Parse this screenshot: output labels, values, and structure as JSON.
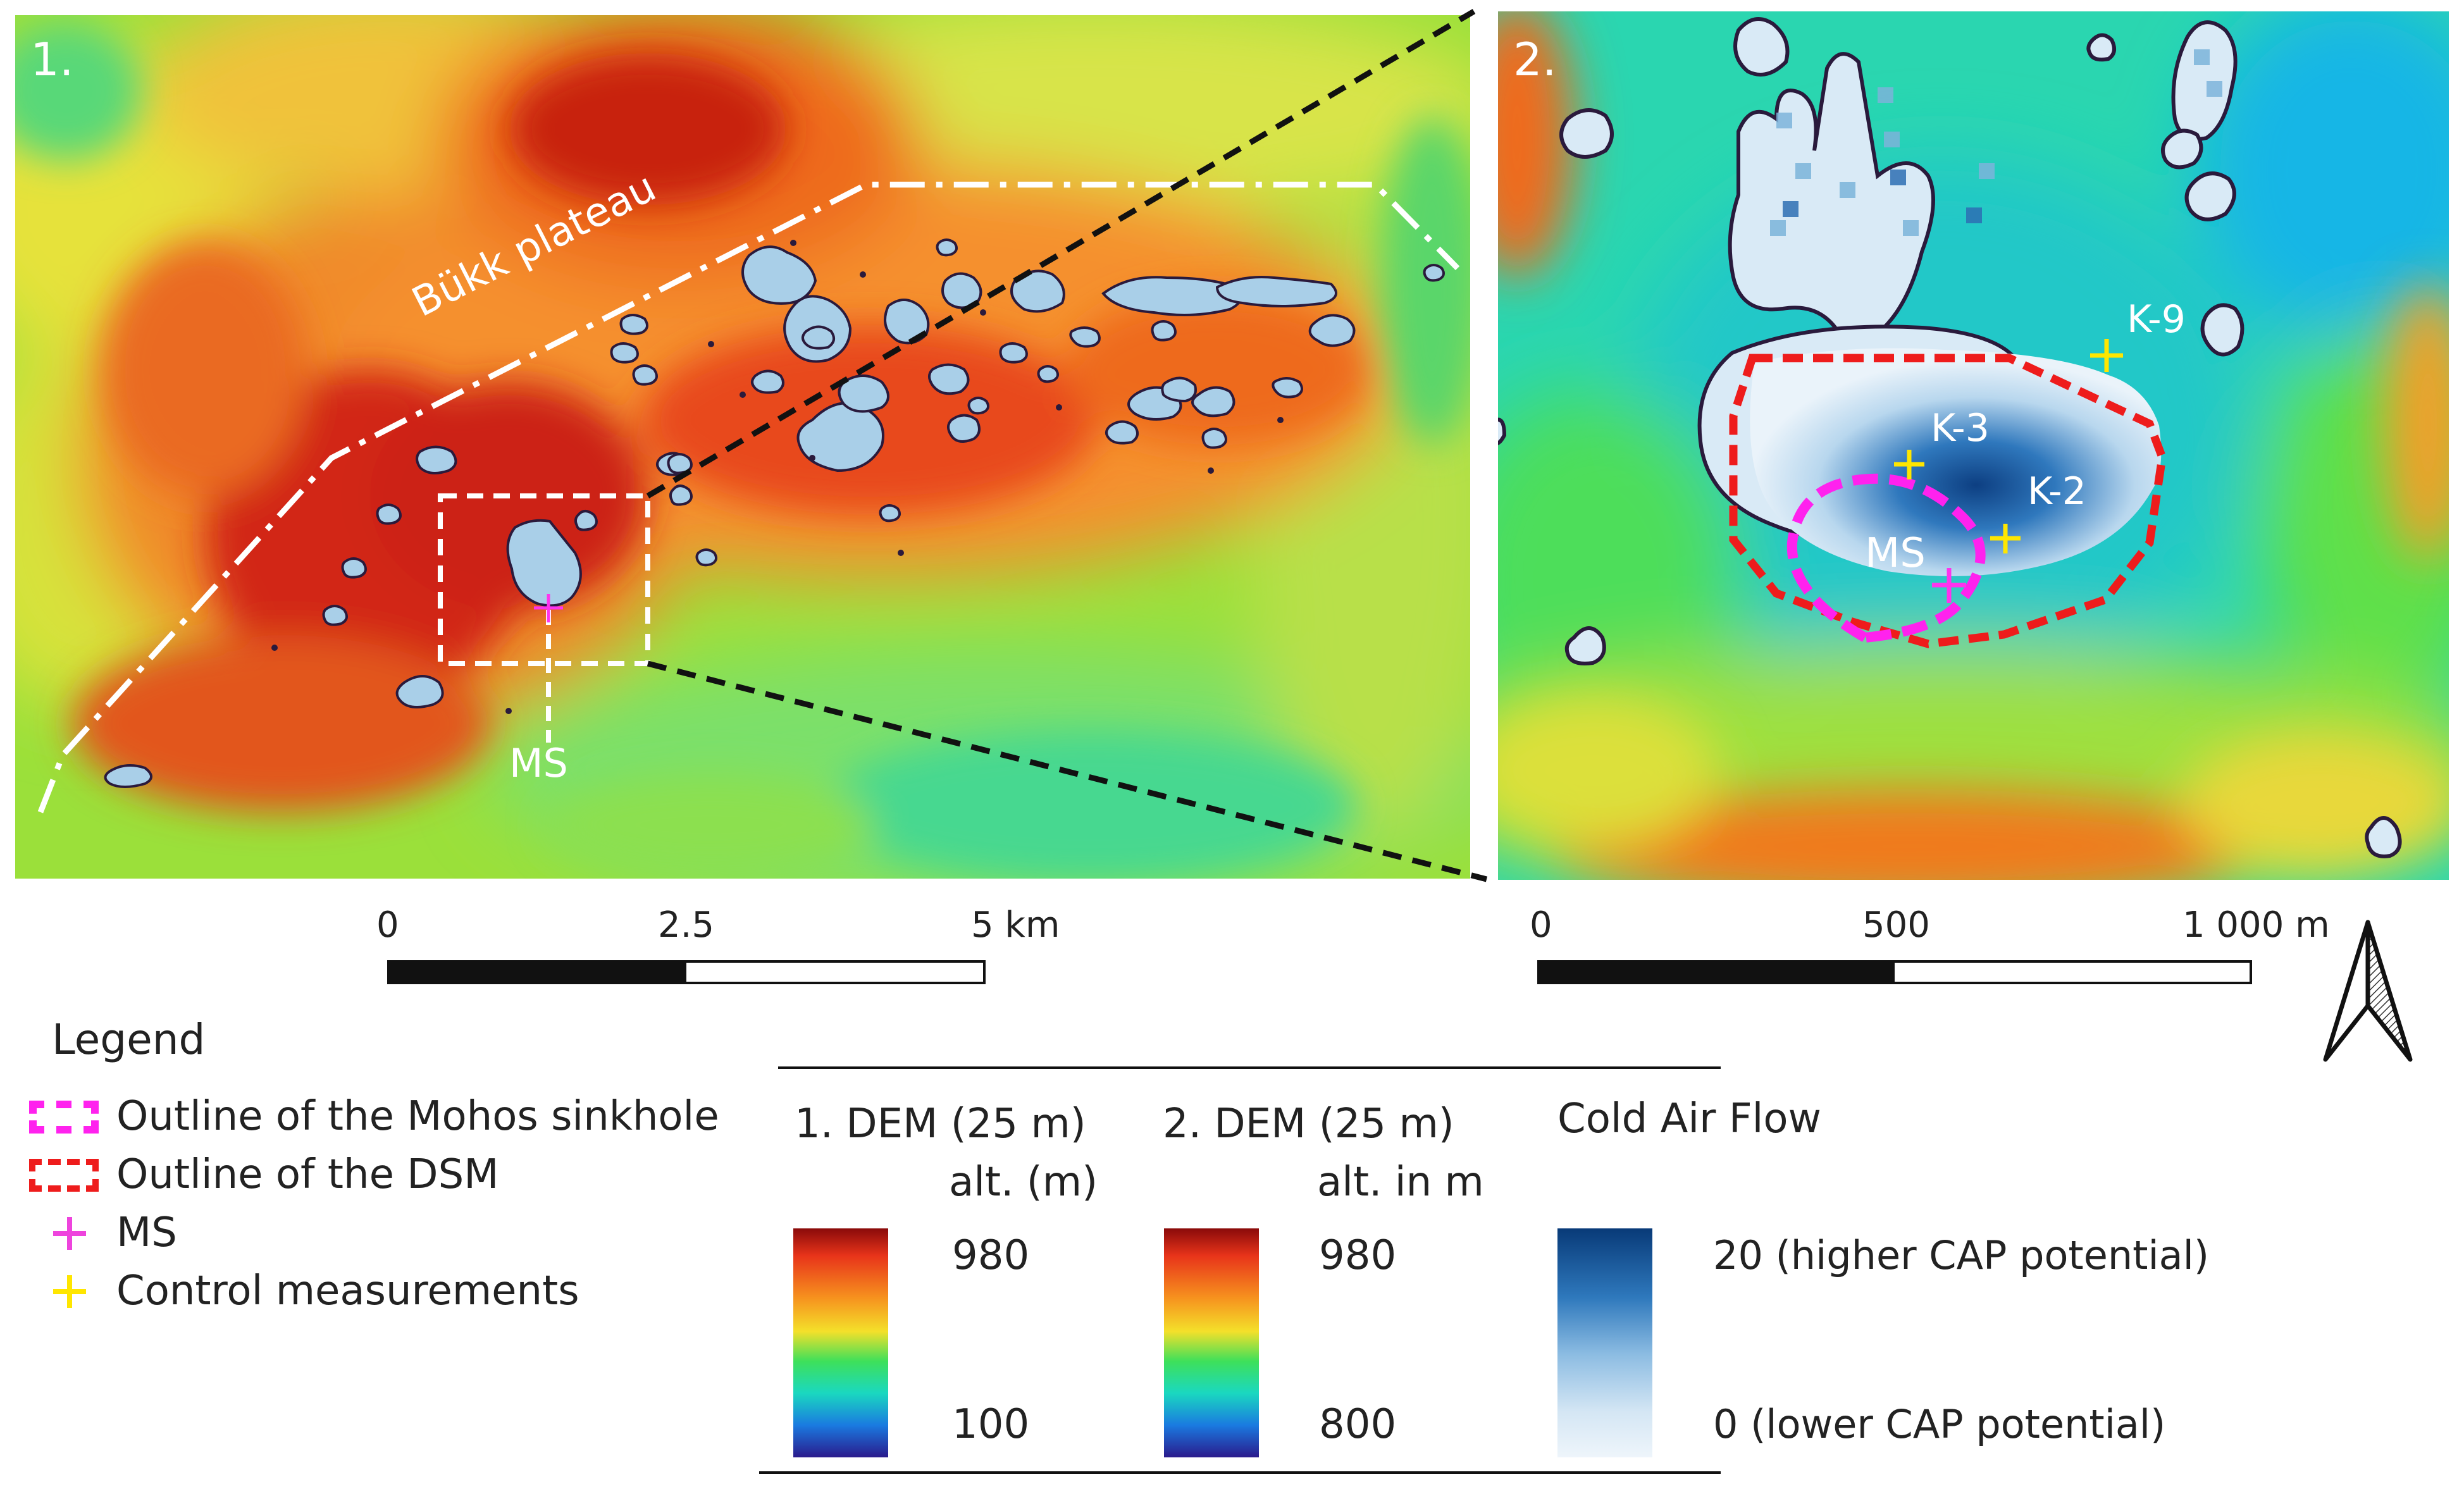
{
  "map1": {
    "panel_label": "1.",
    "plateau_label": "Bükk plateau",
    "ms_label": "MS",
    "scale": {
      "ticks": [
        "0",
        "2.5",
        "5 km"
      ]
    }
  },
  "map2": {
    "panel_label": "2.",
    "points": [
      {
        "label": "K-9",
        "type": "control"
      },
      {
        "label": "K-3",
        "type": "control"
      },
      {
        "label": "K-2",
        "type": "control"
      },
      {
        "label": "MS",
        "type": "ms"
      }
    ],
    "scale": {
      "ticks": [
        "0",
        "500",
        "1 000 m"
      ]
    }
  },
  "legend": {
    "title": "Legend",
    "items": [
      {
        "label": "Outline of the Mohos sinkhole",
        "symbol": "magenta-dashed-box",
        "color": "#ff22ee"
      },
      {
        "label": "Outline of the DSM",
        "symbol": "red-dashed-box",
        "color": "#ee1c1c"
      },
      {
        "label": "MS",
        "symbol": "magenta-cross",
        "color": "#ee44dd"
      },
      {
        "label": "Control measurements",
        "symbol": "yellow-cross",
        "color": "#ffe600"
      }
    ]
  },
  "colorbars": [
    {
      "title": "1. DEM (25 m)",
      "subtitle": "alt. (m)",
      "max": "980",
      "min": "100",
      "ramp": "rainbow"
    },
    {
      "title": "2. DEM (25 m)",
      "subtitle": "alt. in m",
      "max": "980",
      "min": "800",
      "ramp": "rainbow"
    },
    {
      "title": "Cold Air Flow",
      "subtitle": "",
      "max": "20 (higher CAP potential)",
      "min": "0 (lower CAP potential)",
      "ramp": "blues"
    }
  ],
  "north_arrow": {
    "icon": "north-arrow-icon"
  }
}
